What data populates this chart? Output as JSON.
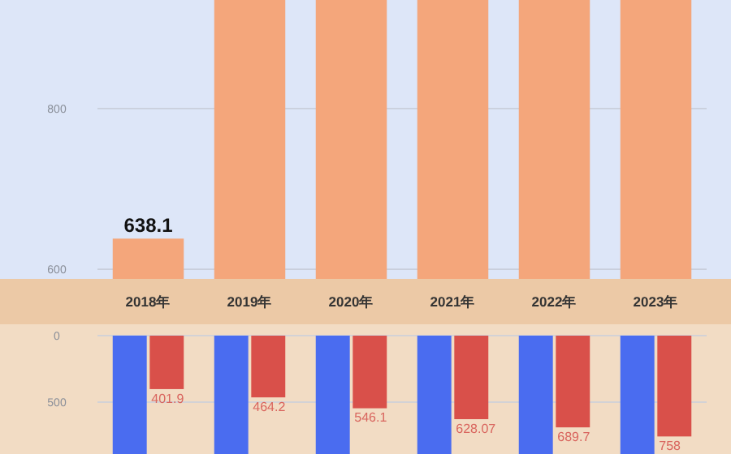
{
  "chart_data": [
    {
      "type": "bar",
      "categories": [
        "2018年",
        "2019年",
        "2020年",
        "2021年",
        "2022年",
        "2023年"
      ],
      "series": [
        {
          "color": "#f4a67b",
          "values": [
            638.1,
            935,
            935,
            935,
            935,
            935
          ],
          "value_labels": [
            "638.1",
            null,
            null,
            null,
            null,
            null
          ]
        }
      ],
      "ylim": [
        588,
        935
      ],
      "yticks": [
        600,
        800
      ],
      "grid": "y"
    },
    {
      "type": "bar",
      "categories": [
        null,
        null,
        null,
        null,
        null,
        null
      ],
      "series": [
        {
          "color": "#4a6cf0",
          "values": [
            890,
            890,
            890,
            890,
            890,
            890
          ]
        },
        {
          "color": "#d9504a",
          "values": [
            401.9,
            464.2,
            546.1,
            628.07,
            689.7,
            758
          ],
          "value_labels": [
            "401.9",
            "464.2",
            "546.1",
            "628.07",
            "689.7",
            "758"
          ]
        }
      ],
      "ylim": [
        890,
        0
      ],
      "yticks": [
        0,
        500
      ],
      "grid": "y",
      "tick_labels": "y"
    }
  ]
}
